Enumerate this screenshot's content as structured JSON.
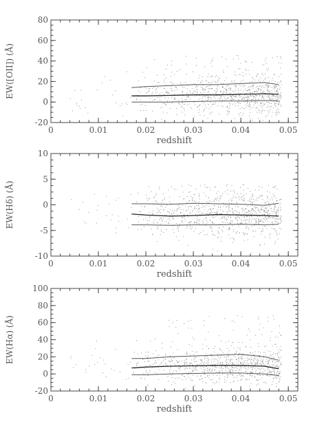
{
  "chart_data": [
    {
      "type": "scatter",
      "ylabel": "EW([OII]) (Å)",
      "xlabel": "redshift",
      "xlim": [
        0,
        0.052
      ],
      "ylim": [
        -20,
        80
      ],
      "xticks": [
        "0",
        "0.01",
        "0.02",
        "0.03",
        "0.04",
        "0.05"
      ],
      "yticks": [
        "-20",
        "0",
        "20",
        "40",
        "60",
        "80"
      ],
      "series": [
        {
          "x": [
            0.017,
            0.02,
            0.025,
            0.03,
            0.035,
            0.04,
            0.045,
            0.048
          ],
          "values": [
            14,
            15,
            16,
            17,
            17,
            18,
            19,
            17
          ]
        },
        {
          "x": [
            0.017,
            0.02,
            0.025,
            0.03,
            0.035,
            0.04,
            0.045,
            0.048
          ],
          "values": [
            6,
            6,
            6.5,
            7,
            7,
            7.5,
            8,
            7.5
          ]
        },
        {
          "x": [
            0.017,
            0.02,
            0.025,
            0.03,
            0.035,
            0.04,
            0.045,
            0.048
          ],
          "values": [
            0,
            0,
            0,
            0.5,
            1,
            1,
            1.5,
            1
          ]
        }
      ]
    },
    {
      "type": "scatter",
      "ylabel": "EW(Hδ) (Å)",
      "xlabel": "redshift",
      "xlim": [
        0,
        0.052
      ],
      "ylim": [
        -10,
        10
      ],
      "xticks": [
        "0",
        "0.01",
        "0.02",
        "0.03",
        "0.04",
        "0.05"
      ],
      "yticks": [
        "-10",
        "-5",
        "0",
        "5",
        "10"
      ],
      "series": [
        {
          "x": [
            0.017,
            0.02,
            0.025,
            0.03,
            0.035,
            0.04,
            0.045,
            0.048
          ],
          "values": [
            0.2,
            0.2,
            0.1,
            0.3,
            0.2,
            0.1,
            -0.1,
            0.3
          ]
        },
        {
          "x": [
            0.017,
            0.02,
            0.025,
            0.03,
            0.035,
            0.04,
            0.045,
            0.048
          ],
          "values": [
            -1.8,
            -2.0,
            -2.2,
            -2.1,
            -1.9,
            -2.0,
            -2.1,
            -2.2
          ]
        },
        {
          "x": [
            0.017,
            0.02,
            0.025,
            0.03,
            0.035,
            0.04,
            0.045,
            0.048
          ],
          "values": [
            -3.9,
            -3.9,
            -4.0,
            -3.9,
            -3.9,
            -3.8,
            -3.9,
            -3.8
          ]
        }
      ]
    },
    {
      "type": "scatter",
      "ylabel": "EW(Hα) (Å)",
      "xlabel": "redshift",
      "xlim": [
        0,
        0.052
      ],
      "ylim": [
        -20,
        100
      ],
      "xticks": [
        "0",
        "0.01",
        "0.02",
        "0.03",
        "0.04",
        "0.05"
      ],
      "yticks": [
        "-20",
        "0",
        "20",
        "40",
        "60",
        "80",
        "100"
      ],
      "series": [
        {
          "x": [
            0.017,
            0.02,
            0.025,
            0.03,
            0.035,
            0.04,
            0.045,
            0.048
          ],
          "values": [
            18,
            18,
            20,
            21,
            22,
            23,
            20,
            16
          ]
        },
        {
          "x": [
            0.017,
            0.02,
            0.025,
            0.03,
            0.035,
            0.04,
            0.045,
            0.048
          ],
          "values": [
            7,
            8,
            9,
            9.5,
            10,
            10,
            9,
            6
          ]
        },
        {
          "x": [
            0.017,
            0.02,
            0.025,
            0.03,
            0.035,
            0.04,
            0.045,
            0.048
          ],
          "values": [
            -1,
            -1,
            0,
            0.5,
            1,
            1,
            0,
            -2
          ]
        }
      ]
    }
  ]
}
